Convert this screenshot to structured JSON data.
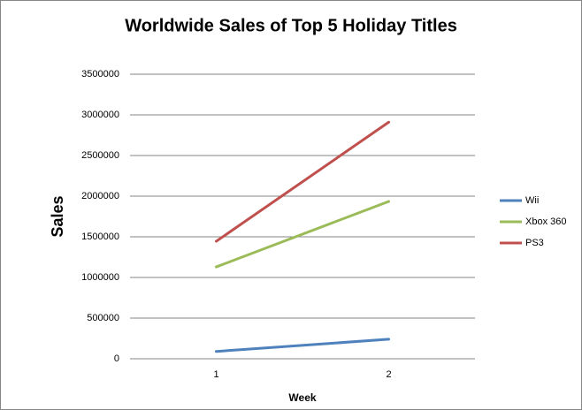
{
  "chart_data": {
    "type": "line",
    "title": "Worldwide Sales of Top 5 Holiday Titles",
    "x_label": "Week",
    "y_label": "Sales",
    "categories": [
      "1",
      "2"
    ],
    "series": [
      {
        "name": "Wii",
        "color": "#4f81bd",
        "values": [
          90000,
          240000
        ]
      },
      {
        "name": "Xbox 360",
        "color": "#9bbb59",
        "values": [
          1130000,
          1935000
        ]
      },
      {
        "name": "PS3",
        "color": "#c0504d",
        "values": [
          1445000,
          2910000
        ]
      }
    ],
    "ylim": [
      0,
      3500000
    ],
    "yticks": [
      0,
      500000,
      1000000,
      1500000,
      2000000,
      2500000,
      3000000,
      3500000
    ],
    "grid": true,
    "legend": "right"
  }
}
